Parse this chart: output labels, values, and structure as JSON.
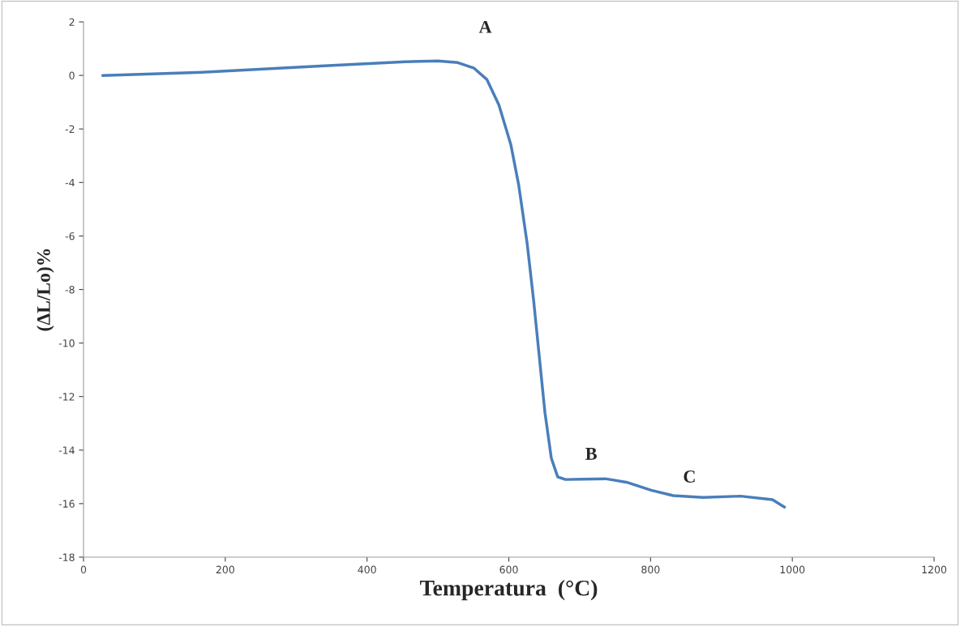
{
  "chart_data": {
    "type": "line",
    "xlabel": "Temperatura  (°C)",
    "ylabel": "(ΔL/Lo)%",
    "x": [
      27,
      168,
      340,
      454,
      500,
      528,
      551,
      569,
      586,
      603,
      614,
      626,
      635,
      643,
      651,
      660,
      669,
      680,
      702,
      736,
      766,
      801,
      832,
      874,
      927,
      972,
      989
    ],
    "series": [
      {
        "color": "#4a7ebb",
        "values": [
          0,
          0.12,
          0.36,
          0.51,
          0.54,
          0.48,
          0.27,
          -0.15,
          -1.1,
          -2.6,
          -4.1,
          -6.3,
          -8.4,
          -10.5,
          -12.6,
          -14.3,
          -15.0,
          -15.1,
          -15.09,
          -15.07,
          -15.2,
          -15.5,
          -15.7,
          -15.77,
          -15.72,
          -15.85,
          -16.13
        ]
      }
    ],
    "annotations": [
      {
        "text": "A",
        "x": 551,
        "y": 0.27
      },
      {
        "text": "B",
        "x": 702,
        "y": -15.09
      },
      {
        "text": "C",
        "x": 874,
        "y": -15.77
      }
    ],
    "xlim": [
      0,
      1200
    ],
    "xticks": [
      0,
      200,
      400,
      600,
      800,
      1000,
      1200
    ],
    "ylim": [
      -18,
      2
    ],
    "yticks": [
      -18,
      -16,
      -14,
      -12,
      -10,
      -8,
      -6,
      -4,
      -2,
      0,
      2
    ],
    "grid": false,
    "legend": false,
    "marker": "none",
    "line_style": "solid"
  }
}
